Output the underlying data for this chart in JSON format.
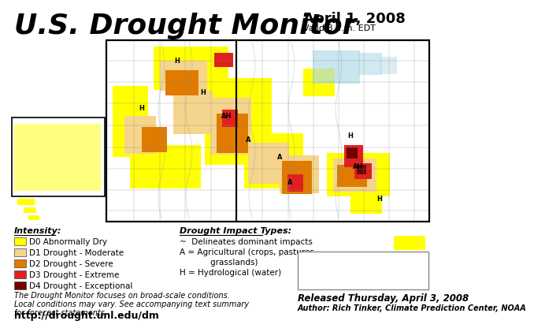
{
  "title": "U.S. Drought Monitor",
  "date_line1": "April 1, 2008",
  "date_line2": "Valid 8 a.m. EDT",
  "background_color": "#ffffff",
  "title_color": "#000000",
  "title_fontsize": 26,
  "legend_title": "Intensity:",
  "legend_items": [
    {
      "label": "D0 Abnormally Dry",
      "color": "#ffff00"
    },
    {
      "label": "D1 Drought - Moderate",
      "color": "#f5d58c"
    },
    {
      "label": "D2 Drought - Severe",
      "color": "#e07b00"
    },
    {
      "label": "D3 Drought - Extreme",
      "color": "#e02020"
    },
    {
      "label": "D4 Drought - Exceptional",
      "color": "#730000"
    }
  ],
  "impact_title": "Drought Impact Types:",
  "impact_items": [
    "~  Delineates dominant impacts",
    "A = Agricultural (crops, pastures,",
    "            grasslands)",
    "H = Hydrological (water)"
  ],
  "footnote1": "The Drought Monitor focuses on broad-scale conditions.",
  "footnote2": "Local conditions may vary. See accompanying text summary",
  "footnote3": "for forecast statements.",
  "url": "http://drought.unl.edu/dm",
  "released": "Released Thursday, April 3, 2008",
  "author": "Author: Rich Tinker, Climate Prediction Center, NOAA"
}
